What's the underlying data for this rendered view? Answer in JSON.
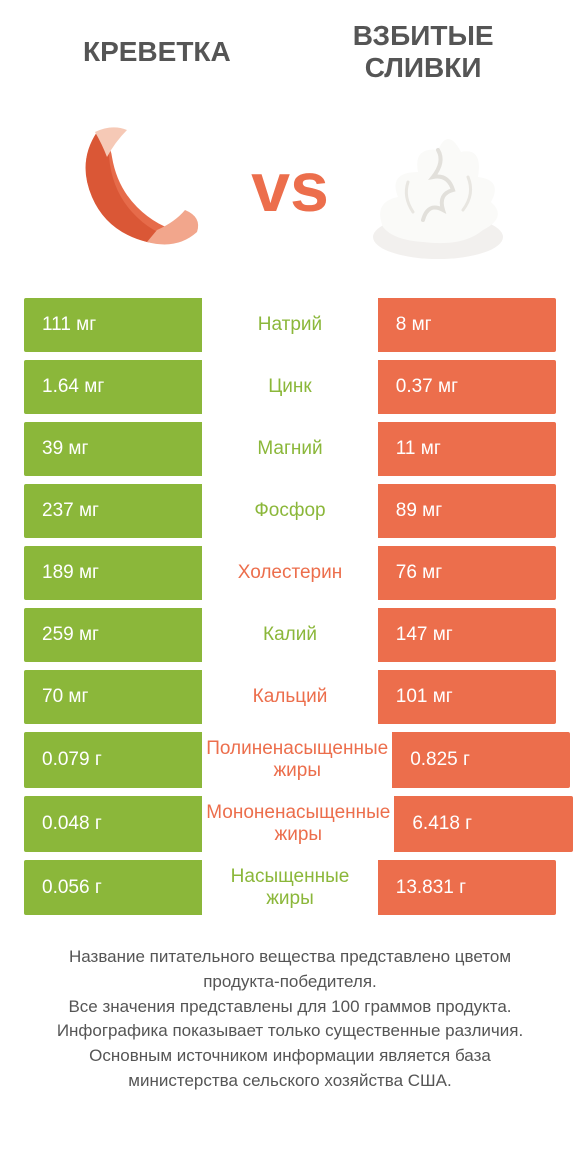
{
  "colors": {
    "green": "#8bb73a",
    "orange": "#ec6e4c",
    "text": "#555555",
    "vs": "#ec6e4c"
  },
  "header": {
    "left": "Креветка",
    "right": "Взбитые сливки"
  },
  "vs_label": "vs",
  "rows": [
    {
      "left": "111 мг",
      "mid": "Натрий",
      "right": "8 мг",
      "winner": "left"
    },
    {
      "left": "1.64 мг",
      "mid": "Цинк",
      "right": "0.37 мг",
      "winner": "left"
    },
    {
      "left": "39 мг",
      "mid": "Магний",
      "right": "11 мг",
      "winner": "left"
    },
    {
      "left": "237 мг",
      "mid": "Фосфор",
      "right": "89 мг",
      "winner": "left"
    },
    {
      "left": "189 мг",
      "mid": "Холестерин",
      "right": "76 мг",
      "winner": "right"
    },
    {
      "left": "259 мг",
      "mid": "Калий",
      "right": "147 мг",
      "winner": "left"
    },
    {
      "left": "70 мг",
      "mid": "Кальций",
      "right": "101 мг",
      "winner": "right"
    },
    {
      "left": "0.079 г",
      "mid": "Полиненасыщенные жиры",
      "right": "0.825 г",
      "winner": "right"
    },
    {
      "left": "0.048 г",
      "mid": "Мононенасыщенные жиры",
      "right": "6.418 г",
      "winner": "right"
    },
    {
      "left": "0.056 г",
      "mid": "Насыщенные жиры",
      "right": "13.831 г",
      "winner": "left"
    }
  ],
  "footer": {
    "line1": "Название питательного вещества представлено цветом продукта-победителя.",
    "line2": "Все значения представлены для 100 граммов продукта.",
    "line3": "Инфографика показывает только существенные различия.",
    "line4": "Основным источником информации является база министерства сельского хозяйства США."
  }
}
